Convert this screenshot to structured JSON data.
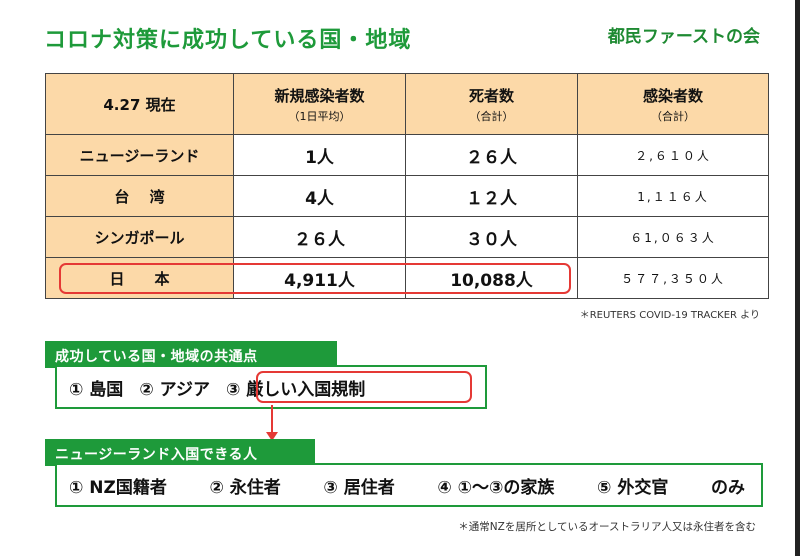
{
  "title": "コロナ対策に成功している国・地域",
  "org": "都民ファーストの会",
  "table": {
    "header": {
      "date": "4.27 現在",
      "new_cases": "新規感染者数",
      "new_cases_sub": "（1日平均）",
      "deaths": "死者数",
      "deaths_sub": "（合計）",
      "cases": "感染者数",
      "cases_sub": "（合計）"
    },
    "rows": [
      {
        "country": "ニュージーランド",
        "new_cases": "1人",
        "deaths": "２６人",
        "cases": "２,６１０人"
      },
      {
        "country": "台　 湾",
        "new_cases": "4人",
        "deaths": "１２人",
        "cases": "1,１１６人"
      },
      {
        "country": "シンガポール",
        "new_cases": "２６人",
        "deaths": "３０人",
        "cases": "６1,０６３人"
      },
      {
        "country": "日　　本",
        "new_cases": "4,911人",
        "deaths": "10,088人",
        "cases": "５７７,３５０人"
      }
    ]
  },
  "source": "＊REUTERS COVID-19 TRACKER より",
  "section1": {
    "heading": "成功している国・地域の共通点",
    "items": [
      "① 島国",
      "② アジア",
      "③ 厳しい入国規制"
    ]
  },
  "section2": {
    "heading": "ニュージーランド入国できる人",
    "items": [
      "① NZ国籍者",
      "② 永住者",
      "③ 居住者",
      "④ ①～③の家族",
      "⑤ 外交官",
      "のみ"
    ]
  },
  "note": "＊通常NZを居所としているオーストラリア人又は永住者を含む",
  "colors": {
    "green": "#1e9a3a",
    "header_fill": "#fcd9a8",
    "highlight": "#e53935"
  }
}
